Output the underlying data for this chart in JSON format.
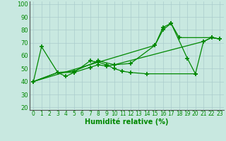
{
  "background_color": "#c8e8e0",
  "grid_color": "#aacccc",
  "line_color": "#008800",
  "xlim": [
    -0.5,
    23.5
  ],
  "ylim": [
    18,
    102
  ],
  "yticks": [
    20,
    30,
    40,
    50,
    60,
    70,
    80,
    90,
    100
  ],
  "xticks": [
    0,
    1,
    2,
    3,
    4,
    5,
    6,
    7,
    8,
    9,
    10,
    11,
    12,
    13,
    14,
    15,
    16,
    17,
    18,
    19,
    20,
    21,
    22,
    23
  ],
  "xlabel": "Humidité relative (%)",
  "series": [
    {
      "x": [
        0,
        1,
        3,
        4,
        5,
        7,
        8,
        9,
        10,
        11,
        12,
        14,
        20
      ],
      "y": [
        40,
        67,
        47,
        44,
        47,
        56,
        55,
        53,
        50,
        48,
        47,
        46,
        46
      ]
    },
    {
      "x": [
        0,
        3,
        5,
        7,
        8,
        9,
        10,
        21,
        22,
        23
      ],
      "y": [
        40,
        47,
        47,
        51,
        53,
        52,
        53,
        71,
        74,
        73
      ]
    },
    {
      "x": [
        0,
        3,
        5,
        8,
        10,
        12,
        15,
        16,
        17,
        18,
        22,
        23
      ],
      "y": [
        40,
        47,
        48,
        56,
        53,
        54,
        68,
        80,
        85,
        74,
        74,
        73
      ]
    },
    {
      "x": [
        0,
        15,
        16,
        17,
        19,
        20,
        21,
        22,
        23
      ],
      "y": [
        40,
        68,
        82,
        85,
        58,
        46,
        71,
        74,
        73
      ]
    }
  ]
}
